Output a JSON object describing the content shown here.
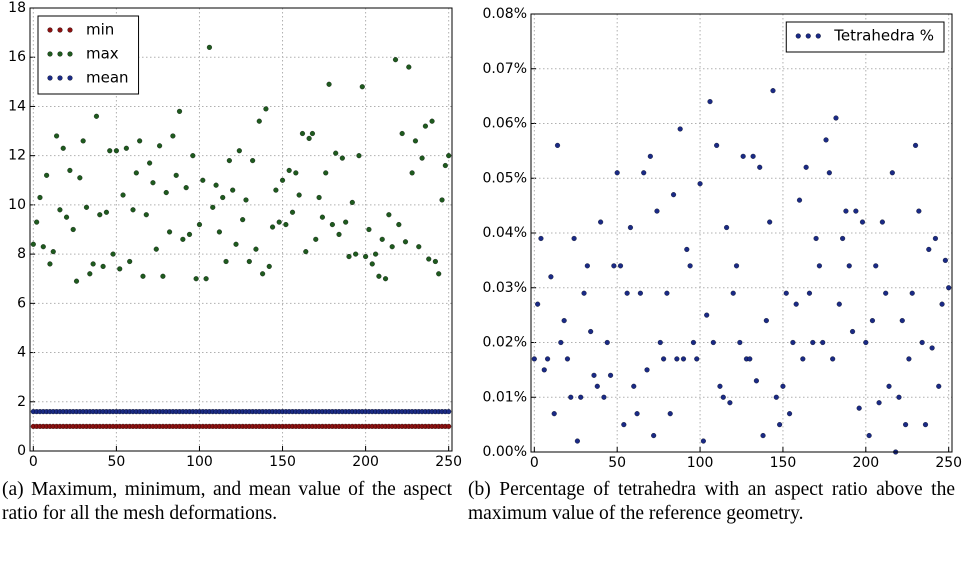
{
  "chart_data": [
    {
      "type": "scatter",
      "caption": "(a) Maximum, minimum, and mean value of the aspect ratio for all the mesh deformations.",
      "x": [
        0,
        2,
        4,
        6,
        8,
        10,
        12,
        14,
        16,
        18,
        20,
        22,
        24,
        26,
        28,
        30,
        32,
        34,
        36,
        38,
        40,
        42,
        44,
        46,
        48,
        50,
        52,
        54,
        56,
        58,
        60,
        62,
        64,
        66,
        68,
        70,
        72,
        74,
        76,
        78,
        80,
        82,
        84,
        86,
        88,
        90,
        92,
        94,
        96,
        98,
        100,
        102,
        104,
        106,
        108,
        110,
        112,
        114,
        116,
        118,
        120,
        122,
        124,
        126,
        128,
        130,
        132,
        134,
        136,
        138,
        140,
        142,
        144,
        146,
        148,
        150,
        152,
        154,
        156,
        158,
        160,
        162,
        164,
        166,
        168,
        170,
        172,
        174,
        176,
        178,
        180,
        182,
        184,
        186,
        188,
        190,
        192,
        194,
        196,
        198,
        200,
        202,
        204,
        206,
        208,
        210,
        212,
        214,
        216,
        218,
        220,
        222,
        224,
        226,
        228,
        230,
        232,
        234,
        236,
        238,
        240,
        242,
        244,
        246,
        248,
        250
      ],
      "series": [
        {
          "name": "min",
          "color": "#8b1010",
          "values": [
            1.0,
            1.0,
            1.0,
            1.0,
            1.0,
            1.0,
            1.0,
            1.0,
            1.0,
            1.0,
            1.0,
            1.0,
            1.0,
            1.0,
            1.0,
            1.0,
            1.0,
            1.0,
            1.0,
            1.0,
            1.0,
            1.0,
            1.0,
            1.0,
            1.0,
            1.0,
            1.0,
            1.0,
            1.0,
            1.0,
            1.0,
            1.0,
            1.0,
            1.0,
            1.0,
            1.0,
            1.0,
            1.0,
            1.0,
            1.0,
            1.0,
            1.0,
            1.0,
            1.0,
            1.0,
            1.0,
            1.0,
            1.0,
            1.0,
            1.0,
            1.0,
            1.0,
            1.0,
            1.0,
            1.0,
            1.0,
            1.0,
            1.0,
            1.0,
            1.0,
            1.0,
            1.0,
            1.0,
            1.0,
            1.0,
            1.0,
            1.0,
            1.0,
            1.0,
            1.0,
            1.0,
            1.0,
            1.0,
            1.0,
            1.0,
            1.0,
            1.0,
            1.0,
            1.0,
            1.0,
            1.0,
            1.0,
            1.0,
            1.0,
            1.0,
            1.0,
            1.0,
            1.0,
            1.0,
            1.0,
            1.0,
            1.0,
            1.0,
            1.0,
            1.0,
            1.0,
            1.0,
            1.0,
            1.0,
            1.0,
            1.0,
            1.0,
            1.0,
            1.0,
            1.0,
            1.0,
            1.0,
            1.0,
            1.0,
            1.0,
            1.0,
            1.0,
            1.0,
            1.0,
            1.0,
            1.0,
            1.0,
            1.0,
            1.0,
            1.0,
            1.0,
            1.0,
            1.0,
            1.0,
            1.0,
            1.0
          ]
        },
        {
          "name": "max",
          "color": "#1e5a1e",
          "values": [
            8.4,
            9.3,
            10.3,
            8.3,
            11.2,
            7.6,
            8.1,
            12.8,
            9.8,
            12.3,
            9.5,
            11.4,
            9.0,
            6.9,
            11.1,
            12.6,
            9.9,
            7.2,
            7.6,
            13.6,
            9.6,
            7.5,
            9.7,
            12.2,
            8.0,
            12.2,
            7.4,
            10.4,
            12.3,
            7.7,
            9.8,
            11.3,
            12.6,
            7.1,
            9.6,
            11.7,
            10.9,
            8.2,
            12.4,
            7.1,
            10.5,
            8.9,
            12.8,
            11.2,
            13.8,
            8.6,
            10.7,
            8.8,
            12.0,
            7.0,
            9.2,
            11.0,
            7.0,
            16.4,
            9.9,
            10.8,
            8.9,
            10.3,
            7.7,
            11.8,
            10.6,
            8.4,
            12.2,
            9.4,
            10.2,
            7.7,
            11.8,
            8.2,
            13.4,
            7.2,
            13.9,
            7.5,
            9.1,
            10.6,
            9.3,
            11.0,
            9.2,
            11.4,
            9.7,
            11.3,
            10.4,
            12.9,
            8.1,
            12.7,
            12.9,
            8.6,
            10.3,
            9.5,
            11.3,
            14.9,
            9.2,
            12.1,
            8.8,
            11.9,
            9.3,
            7.9,
            10.1,
            8.0,
            12.0,
            14.8,
            7.9,
            9.0,
            7.6,
            8.0,
            7.1,
            8.6,
            7.0,
            9.6,
            8.3,
            15.9,
            9.2,
            12.9,
            8.5,
            15.6,
            11.3,
            12.6,
            8.3,
            11.9,
            13.2,
            7.8,
            13.4,
            7.7,
            7.2,
            10.2,
            11.6,
            12.0
          ]
        },
        {
          "name": "mean",
          "color": "#1a2a85",
          "values": [
            1.6,
            1.6,
            1.6,
            1.6,
            1.6,
            1.6,
            1.6,
            1.6,
            1.6,
            1.6,
            1.6,
            1.6,
            1.6,
            1.6,
            1.6,
            1.6,
            1.6,
            1.6,
            1.6,
            1.6,
            1.6,
            1.6,
            1.6,
            1.6,
            1.6,
            1.6,
            1.6,
            1.6,
            1.6,
            1.6,
            1.6,
            1.6,
            1.6,
            1.6,
            1.6,
            1.6,
            1.6,
            1.6,
            1.6,
            1.6,
            1.6,
            1.6,
            1.6,
            1.6,
            1.6,
            1.6,
            1.6,
            1.6,
            1.6,
            1.6,
            1.6,
            1.6,
            1.6,
            1.6,
            1.6,
            1.6,
            1.6,
            1.6,
            1.6,
            1.6,
            1.6,
            1.6,
            1.6,
            1.6,
            1.6,
            1.6,
            1.6,
            1.6,
            1.6,
            1.6,
            1.6,
            1.6,
            1.6,
            1.6,
            1.6,
            1.6,
            1.6,
            1.6,
            1.6,
            1.6,
            1.6,
            1.6,
            1.6,
            1.6,
            1.6,
            1.6,
            1.6,
            1.6,
            1.6,
            1.6,
            1.6,
            1.6,
            1.6,
            1.6,
            1.6,
            1.6,
            1.6,
            1.6,
            1.6,
            1.6,
            1.6,
            1.6,
            1.6,
            1.6,
            1.6,
            1.6,
            1.6,
            1.6,
            1.6,
            1.6,
            1.6,
            1.6,
            1.6,
            1.6,
            1.6,
            1.6,
            1.6,
            1.6,
            1.6,
            1.6,
            1.6,
            1.6,
            1.6,
            1.6,
            1.6,
            1.6
          ]
        }
      ],
      "xlim": [
        -2,
        252
      ],
      "xticks": [
        0,
        50,
        100,
        150,
        200,
        250
      ],
      "ylim": [
        0,
        18
      ],
      "yticks": [
        0,
        2,
        4,
        6,
        8,
        10,
        12,
        14,
        16,
        18
      ],
      "grid": true,
      "legend": "upper left"
    },
    {
      "type": "scatter",
      "caption": "(b) Percentage of tetrahedra with an aspect ratio above the maximum value of the reference geometry.",
      "x": [
        0,
        2,
        4,
        6,
        8,
        10,
        12,
        14,
        16,
        18,
        20,
        22,
        24,
        26,
        28,
        30,
        32,
        34,
        36,
        38,
        40,
        42,
        44,
        46,
        48,
        50,
        52,
        54,
        56,
        58,
        60,
        62,
        64,
        66,
        68,
        70,
        72,
        74,
        76,
        78,
        80,
        82,
        84,
        86,
        88,
        90,
        92,
        94,
        96,
        98,
        100,
        102,
        104,
        106,
        108,
        110,
        112,
        114,
        116,
        118,
        120,
        122,
        124,
        126,
        128,
        130,
        132,
        134,
        136,
        138,
        140,
        142,
        144,
        146,
        148,
        150,
        152,
        154,
        156,
        158,
        160,
        162,
        164,
        166,
        168,
        170,
        172,
        174,
        176,
        178,
        180,
        182,
        184,
        186,
        188,
        190,
        192,
        194,
        196,
        198,
        200,
        202,
        204,
        206,
        208,
        210,
        212,
        214,
        216,
        218,
        220,
        222,
        224,
        226,
        228,
        230,
        232,
        234,
        236,
        238,
        240,
        242,
        244,
        246,
        248,
        250
      ],
      "series": [
        {
          "name": "Tetrahedra %",
          "color": "#1a2a85",
          "values": [
            0.017,
            0.027,
            0.039,
            0.015,
            0.017,
            0.032,
            0.007,
            0.056,
            0.02,
            0.024,
            0.017,
            0.01,
            0.039,
            0.002,
            0.01,
            0.029,
            0.034,
            0.022,
            0.014,
            0.012,
            0.042,
            0.01,
            0.02,
            0.014,
            0.034,
            0.051,
            0.034,
            0.005,
            0.029,
            0.041,
            0.012,
            0.007,
            0.029,
            0.051,
            0.015,
            0.054,
            0.003,
            0.044,
            0.02,
            0.017,
            0.029,
            0.007,
            0.047,
            0.017,
            0.059,
            0.017,
            0.037,
            0.034,
            0.02,
            0.017,
            0.049,
            0.002,
            0.025,
            0.064,
            0.02,
            0.056,
            0.012,
            0.01,
            0.041,
            0.009,
            0.029,
            0.034,
            0.02,
            0.054,
            0.017,
            0.017,
            0.054,
            0.013,
            0.052,
            0.003,
            0.024,
            0.042,
            0.066,
            0.01,
            0.005,
            0.012,
            0.029,
            0.007,
            0.02,
            0.027,
            0.046,
            0.017,
            0.052,
            0.029,
            0.02,
            0.039,
            0.034,
            0.02,
            0.057,
            0.051,
            0.017,
            0.061,
            0.027,
            0.039,
            0.044,
            0.034,
            0.022,
            0.044,
            0.008,
            0.042,
            0.02,
            0.003,
            0.024,
            0.034,
            0.009,
            0.042,
            0.029,
            0.012,
            0.051,
            0.0,
            0.01,
            0.024,
            0.005,
            0.017,
            0.029,
            0.056,
            0.044,
            0.02,
            0.005,
            0.037,
            0.019,
            0.039,
            0.012,
            0.027,
            0.035,
            0.03
          ]
        }
      ],
      "xlim": [
        -2,
        252
      ],
      "xticks": [
        0,
        50,
        100,
        150,
        200,
        250
      ],
      "ylim": [
        0,
        0.08
      ],
      "yticks": [
        {
          "value": 0,
          "label": "0.00%"
        },
        {
          "value": 0.01,
          "label": "0.01%"
        },
        {
          "value": 0.02,
          "label": "0.02%"
        },
        {
          "value": 0.03,
          "label": "0.03%"
        },
        {
          "value": 0.04,
          "label": "0.04%"
        },
        {
          "value": 0.05,
          "label": "0.05%"
        },
        {
          "value": 0.06,
          "label": "0.06%"
        },
        {
          "value": 0.07,
          "label": "0.07%"
        },
        {
          "value": 0.08,
          "label": "0.08%"
        }
      ],
      "grid": true,
      "legend": "upper right"
    }
  ]
}
